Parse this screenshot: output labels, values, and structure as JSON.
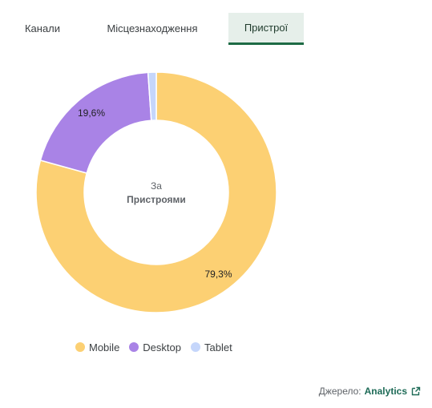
{
  "tabs": [
    {
      "label": "Канали"
    },
    {
      "label": "Місцезнаходження"
    },
    {
      "label": "Пристрої"
    }
  ],
  "center": {
    "line1": "За",
    "line2": "Пристроями"
  },
  "chart_data": {
    "type": "pie",
    "categories": [
      "Mobile",
      "Desktop",
      "Tablet"
    ],
    "values": [
      79.3,
      19.6,
      1.1
    ],
    "data_labels": [
      "79,3%",
      "19,6%",
      ""
    ],
    "colors": [
      "#fcd073",
      "#a983e6",
      "#c5d6fb"
    ],
    "legend": "bottom-left"
  },
  "legend": {
    "items": [
      {
        "label": "Mobile",
        "color": "#fcd073"
      },
      {
        "label": "Desktop",
        "color": "#a983e6"
      },
      {
        "label": "Tablet",
        "color": "#c5d6fb"
      }
    ]
  },
  "source": {
    "label": "Джерело:",
    "link": "Analytics",
    "icon": "external-link-icon"
  }
}
